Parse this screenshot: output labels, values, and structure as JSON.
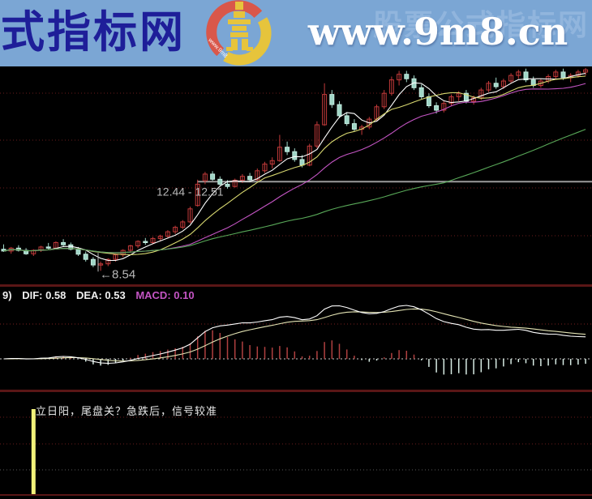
{
  "banner": {
    "site_title": "式指标网",
    "site_url": "www.9m8.cn",
    "watermark": "股票公式指标网",
    "logo_ring_text": "www.9m8",
    "bg_color": "#7ba6d4",
    "title_color": "#1e1e99"
  },
  "macd_panel": {
    "header_prefix": "9)",
    "dif_text": "DIF: 0.58",
    "dea_text": "DEA: 0.53",
    "macd_text": "MACD: 0.10"
  },
  "bottom_panel": {
    "signal_text": "立日阳，尾盘关？急跌后，信号较准"
  },
  "colors": {
    "banner_bg": "#7ba6d4",
    "title_blue": "#1e1e99",
    "logo_red": "#d9574a",
    "logo_yellow": "#e6c43c",
    "candle_up": "#c23a3a",
    "candle_down_fill": "#9fd6c6",
    "candle_down_stroke": "#c4ece0",
    "ma5": "#ffffff",
    "ma10": "#d8d870",
    "ma20": "#c455c4",
    "ma60": "#58a858",
    "grid_maroon": "#6a1d1d",
    "gap_line": "#9a9a9a",
    "label_gray": "#b8b8b8",
    "divider": "#5a1616",
    "macd_pos": "#b04040",
    "macd_neg": "#d8ece4",
    "dif_line": "#ffffff",
    "dea_line": "#e4e4b4",
    "zero_dotted": "#c8c8c8",
    "macd_value_text": "#c455c4",
    "header_white": "#f0f0f0",
    "signal_bar": "#f2f27a",
    "grid_gray": "#5a5a5a"
  },
  "chart_data": [
    {
      "type": "candlestick",
      "description": "daily K-line with MA overlays",
      "ylim": [
        7.9,
        17.65
      ],
      "ma_periods": [
        5,
        10,
        20,
        60
      ],
      "annotations": {
        "gap_line_price": 12.51,
        "gap_label": "12.44 - 12.51",
        "low_label": "←8.54",
        "low_price": 8.54,
        "low_index": 13
      },
      "ohlc": [
        [
          9.5,
          9.72,
          9.38,
          9.42
        ],
        [
          9.42,
          9.6,
          9.3,
          9.55
        ],
        [
          9.55,
          9.68,
          9.4,
          9.45
        ],
        [
          9.45,
          9.55,
          9.25,
          9.3
        ],
        [
          9.3,
          9.5,
          9.2,
          9.45
        ],
        [
          9.45,
          9.65,
          9.38,
          9.6
        ],
        [
          9.6,
          9.78,
          9.5,
          9.55
        ],
        [
          9.55,
          9.85,
          9.5,
          9.8
        ],
        [
          9.8,
          9.95,
          9.62,
          9.7
        ],
        [
          9.7,
          9.8,
          9.45,
          9.5
        ],
        [
          9.5,
          9.6,
          9.2,
          9.28
        ],
        [
          9.28,
          9.4,
          8.95,
          9.05
        ],
        [
          9.05,
          9.15,
          8.7,
          8.8
        ],
        [
          8.8,
          8.95,
          8.54,
          8.85
        ],
        [
          8.85,
          9.1,
          8.75,
          9.05
        ],
        [
          9.05,
          9.3,
          8.95,
          9.25
        ],
        [
          9.25,
          9.5,
          9.15,
          9.45
        ],
        [
          9.45,
          9.7,
          9.35,
          9.65
        ],
        [
          9.65,
          9.9,
          9.55,
          9.85
        ],
        [
          9.85,
          10.0,
          9.7,
          9.8
        ],
        [
          9.8,
          10.05,
          9.72,
          9.98
        ],
        [
          9.98,
          10.15,
          9.85,
          10.08
        ],
        [
          10.08,
          10.35,
          10.0,
          10.28
        ],
        [
          10.28,
          10.55,
          10.18,
          10.48
        ],
        [
          10.48,
          10.8,
          10.4,
          10.72
        ],
        [
          10.72,
          11.4,
          10.65,
          11.3
        ],
        [
          11.45,
          12.6,
          11.4,
          12.4
        ],
        [
          12.55,
          12.95,
          12.4,
          12.85
        ],
        [
          12.85,
          12.98,
          12.55,
          12.62
        ],
        [
          12.62,
          12.75,
          12.3,
          12.4
        ],
        [
          12.4,
          12.58,
          12.2,
          12.3
        ],
        [
          12.3,
          12.65,
          12.25,
          12.58
        ],
        [
          12.58,
          12.85,
          12.45,
          12.75
        ],
        [
          12.75,
          12.9,
          12.5,
          12.6
        ],
        [
          12.6,
          13.1,
          12.55,
          13.0
        ],
        [
          13.0,
          13.4,
          12.9,
          13.3
        ],
        [
          13.3,
          13.6,
          13.1,
          13.45
        ],
        [
          13.45,
          14.6,
          13.4,
          14.05
        ],
        [
          14.05,
          14.3,
          13.7,
          13.85
        ],
        [
          13.85,
          14.0,
          13.4,
          13.5
        ],
        [
          13.5,
          13.7,
          13.15,
          13.25
        ],
        [
          13.25,
          14.2,
          13.2,
          14.1
        ],
        [
          14.1,
          15.2,
          14.0,
          15.05
        ],
        [
          15.05,
          16.9,
          15.0,
          16.4
        ],
        [
          16.4,
          16.6,
          15.8,
          15.95
        ],
        [
          15.95,
          16.1,
          15.35,
          15.45
        ],
        [
          15.45,
          15.6,
          15.0,
          15.1
        ],
        [
          15.1,
          15.3,
          14.75,
          14.85
        ],
        [
          14.85,
          15.05,
          14.6,
          14.95
        ],
        [
          14.95,
          15.4,
          14.85,
          15.3
        ],
        [
          15.3,
          15.95,
          15.2,
          15.85
        ],
        [
          15.85,
          16.6,
          15.75,
          16.45
        ],
        [
          16.45,
          17.2,
          16.35,
          17.05
        ],
        [
          17.05,
          17.45,
          16.8,
          17.3
        ],
        [
          17.3,
          17.45,
          16.95,
          17.1
        ],
        [
          17.1,
          17.25,
          16.6,
          16.7
        ],
        [
          16.7,
          16.85,
          16.2,
          16.3
        ],
        [
          16.3,
          16.45,
          15.8,
          15.9
        ],
        [
          15.9,
          16.05,
          15.55,
          15.7
        ],
        [
          15.7,
          16.1,
          15.6,
          16.0
        ],
        [
          16.0,
          16.4,
          15.9,
          16.3
        ],
        [
          16.3,
          16.55,
          16.1,
          16.45
        ],
        [
          16.45,
          16.6,
          16.0,
          16.1
        ],
        [
          16.1,
          16.35,
          15.95,
          16.25
        ],
        [
          16.25,
          16.7,
          16.15,
          16.6
        ],
        [
          16.6,
          17.0,
          16.5,
          16.9
        ],
        [
          16.9,
          17.15,
          16.65,
          16.75
        ],
        [
          16.75,
          17.1,
          16.65,
          17.0
        ],
        [
          17.0,
          17.35,
          16.9,
          17.25
        ],
        [
          17.25,
          17.5,
          17.1,
          17.4
        ],
        [
          17.4,
          17.55,
          16.95,
          17.05
        ],
        [
          17.05,
          17.2,
          16.7,
          16.8
        ],
        [
          16.8,
          17.1,
          16.7,
          17.0
        ],
        [
          17.0,
          17.3,
          16.9,
          17.2
        ],
        [
          17.2,
          17.5,
          17.1,
          17.4
        ],
        [
          17.4,
          17.55,
          17.05,
          17.15
        ],
        [
          17.15,
          17.35,
          16.95,
          17.25
        ],
        [
          17.25,
          17.5,
          17.15,
          17.4
        ],
        [
          17.4,
          17.58,
          17.25,
          17.5
        ]
      ]
    },
    {
      "type": "macd",
      "description": "MACD(12,26,9) DIF/DEA lines with +/- histogram, derived from candlestick closes",
      "displayed_values": {
        "dif": 0.58,
        "dea": 0.53,
        "macd": 0.1
      }
    },
    {
      "type": "signal-bar",
      "description": "custom indicator panel: full-height yellow signal bar",
      "signal_indices": [
        4
      ]
    }
  ]
}
